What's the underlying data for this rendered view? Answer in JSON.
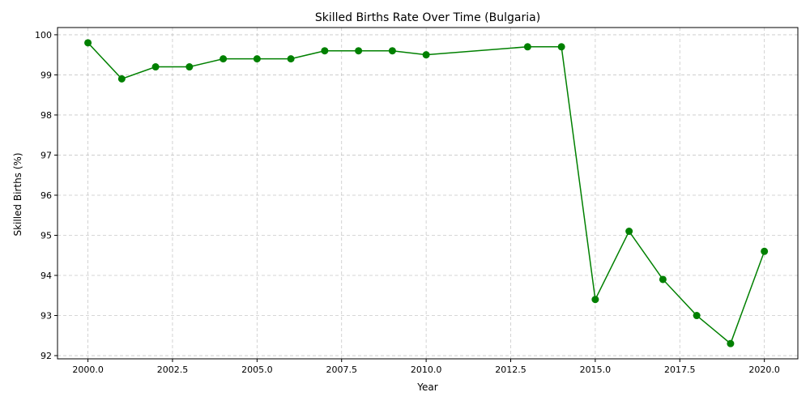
{
  "chart_data": {
    "type": "line",
    "title": "Skilled Births Rate Over Time (Bulgaria)",
    "xlabel": "Year",
    "ylabel": "Skilled Births (%)",
    "xlim": [
      1999.1,
      2020.99
    ],
    "ylim": [
      91.92,
      100.18
    ],
    "x_ticks": [
      2000.0,
      2002.5,
      2005.0,
      2007.5,
      2010.0,
      2012.5,
      2015.0,
      2017.5,
      2020.0
    ],
    "x_tick_labels": [
      "2000.0",
      "2002.5",
      "2005.0",
      "2007.5",
      "2010.0",
      "2012.5",
      "2015.0",
      "2017.5",
      "2020.0"
    ],
    "y_ticks": [
      92,
      93,
      94,
      95,
      96,
      97,
      98,
      99,
      100
    ],
    "y_tick_labels": [
      "92",
      "93",
      "94",
      "95",
      "96",
      "97",
      "98",
      "99",
      "100"
    ],
    "grid": true,
    "series": [
      {
        "color": "#008000",
        "marker": "circle",
        "x": [
          2000,
          2001,
          2002,
          2003,
          2004,
          2005,
          2006,
          2007,
          2008,
          2009,
          2010,
          2013,
          2014,
          2015,
          2016,
          2017,
          2018,
          2019,
          2020
        ],
        "y": [
          99.8,
          98.9,
          99.2,
          99.2,
          99.4,
          99.4,
          99.4,
          99.6,
          99.6,
          99.6,
          99.5,
          99.7,
          99.7,
          93.4,
          95.1,
          93.9,
          93.0,
          92.3,
          94.6
        ]
      }
    ]
  }
}
